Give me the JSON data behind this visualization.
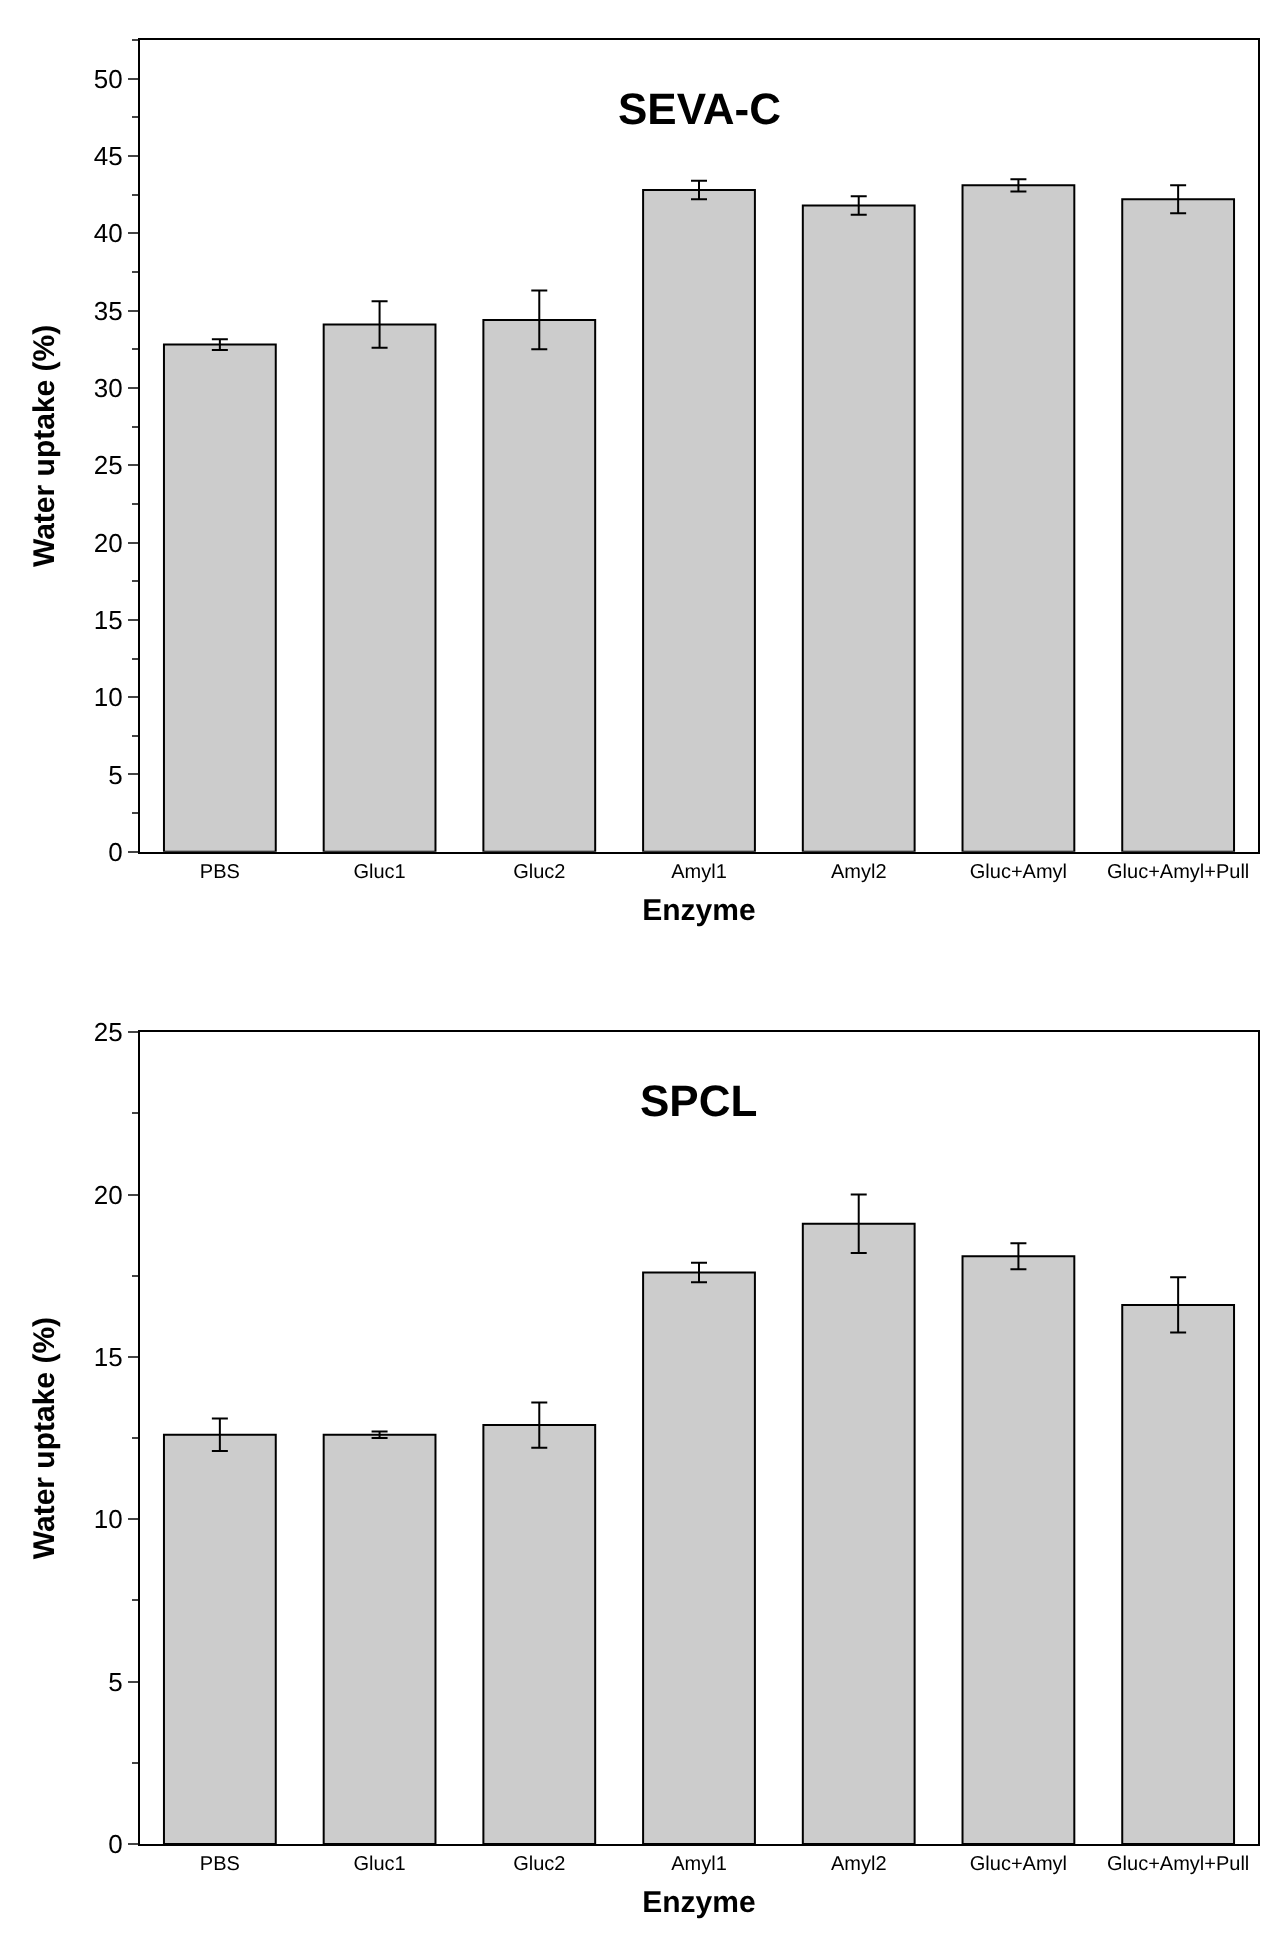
{
  "chart_data": [
    {
      "type": "bar",
      "title": "SEVA-C",
      "xlabel": "Enzyme",
      "ylabel": "Water uptake (%)",
      "categories": [
        "PBS",
        "Gluc1",
        "Gluc2",
        "Amyl1",
        "Amyl2",
        "Gluc+Amyl",
        "Gluc+Amyl+Pull"
      ],
      "values": [
        32.8,
        34.1,
        34.4,
        42.8,
        41.8,
        43.1,
        42.2
      ],
      "errors": [
        0.35,
        1.5,
        1.9,
        0.6,
        0.6,
        0.4,
        0.9
      ],
      "color": "#cccccc",
      "ylim": [
        0,
        52.5
      ],
      "yticks": [
        0,
        5,
        10,
        15,
        20,
        25,
        30,
        35,
        40,
        45,
        50
      ]
    },
    {
      "type": "bar",
      "title": "SPCL",
      "xlabel": "Enzyme",
      "ylabel": "Water uptake (%)",
      "categories": [
        "PBS",
        "Gluc1",
        "Gluc2",
        "Amyl1",
        "Amyl2",
        "Gluc+Amyl",
        "Gluc+Amyl+Pull"
      ],
      "values": [
        12.6,
        12.6,
        12.9,
        17.6,
        19.1,
        18.1,
        16.6
      ],
      "errors": [
        0.5,
        0.1,
        0.7,
        0.3,
        0.9,
        0.4,
        0.85
      ],
      "color": "#cccccc",
      "ylim": [
        0,
        25
      ],
      "yticks": [
        0,
        5,
        10,
        15,
        20,
        25
      ]
    }
  ]
}
